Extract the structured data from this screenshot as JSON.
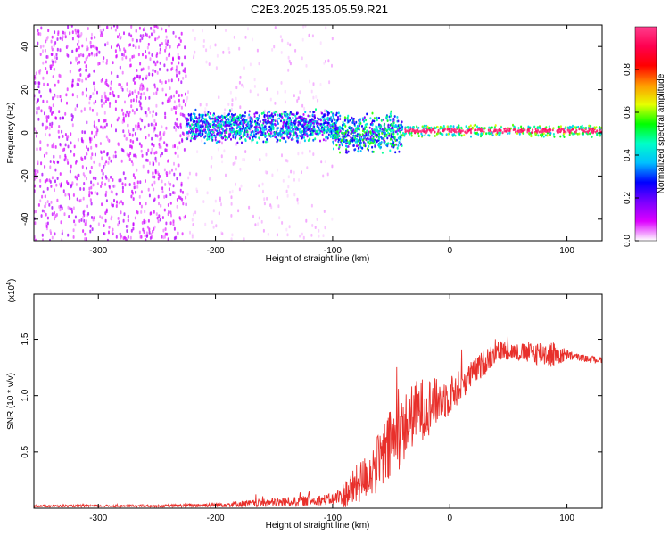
{
  "title": "C2E3.2025.135.05.59.R21",
  "chart_data": [
    {
      "type": "heatmap",
      "xlabel": "Height of straight line (km)",
      "ylabel": "Frequency (Hz)",
      "xlim": [
        -355,
        130
      ],
      "ylim": [
        -50,
        50
      ],
      "xticks": [
        -300,
        -200,
        -100,
        0,
        100
      ],
      "yticks": [
        -40,
        -20,
        0,
        20,
        40
      ],
      "grid": false,
      "colorbar": {
        "label": "Normalized spectral amplitude",
        "range": [
          0,
          1
        ],
        "ticks": [
          "0.0",
          "0.2",
          "0.4",
          "0.6",
          "0.8"
        ],
        "colors": [
          "#ffffff",
          "#dd00ff",
          "#7a00ff",
          "#0000ff",
          "#00bfff",
          "#00ffc8",
          "#00ff00",
          "#e6ff00",
          "#ff9900",
          "#ff0000",
          "#ff0050",
          "#ff3c8c"
        ]
      },
      "regions": [
        {
          "name": "broadband noise",
          "x": [
            -355,
            -225
          ],
          "freq": [
            -50,
            50
          ],
          "amplitude": 0.1
        },
        {
          "name": "weak scatter",
          "x": [
            -225,
            -100
          ],
          "freq": [
            -50,
            50
          ],
          "amplitude": 0.03
        },
        {
          "name": "spectral band",
          "x": [
            -225,
            -95
          ],
          "center_freq": 3,
          "half_width": 8,
          "amplitude": 0.35
        },
        {
          "name": "breakup band",
          "x": [
            -100,
            -40
          ],
          "center_freq": 0,
          "half_width": 10,
          "amplitude": 0.4
        },
        {
          "name": "carrier line",
          "x": [
            -40,
            130
          ],
          "center_freq": 1,
          "half_width": 3,
          "amplitude": 0.95
        }
      ]
    },
    {
      "type": "line",
      "xlabel": "Height of straight line (km)",
      "ylabel": "SNR (10 * v/v)",
      "y_multiplier": "(x10",
      "y_multiplier_exponent": "4",
      "y_multiplier_close": ")",
      "xlim": [
        -355,
        130
      ],
      "ylim": [
        0,
        1.9
      ],
      "xticks": [
        -300,
        -200,
        -100,
        0,
        100
      ],
      "yticks": [
        0.5,
        1.0,
        1.5
      ],
      "ytick_labels": [
        "0.5",
        "1.0",
        "1.5"
      ],
      "grid": false,
      "series": [
        {
          "color": "#e8302b",
          "x": [
            -355,
            -250,
            -200,
            -150,
            -100,
            -90,
            -80,
            -70,
            -60,
            -50,
            -40,
            -30,
            -20,
            -10,
            0,
            10,
            20,
            30,
            40,
            50,
            60,
            70,
            80,
            90,
            100,
            110,
            120,
            130
          ],
          "y": [
            0.02,
            0.02,
            0.03,
            0.05,
            0.08,
            0.12,
            0.2,
            0.3,
            0.4,
            0.55,
            0.7,
            0.85,
            0.9,
            0.95,
            1.0,
            1.1,
            1.2,
            1.3,
            1.4,
            1.4,
            1.38,
            1.38,
            1.38,
            1.36,
            1.36,
            1.34,
            1.32,
            1.32
          ],
          "noise": [
            0.01,
            0.01,
            0.02,
            0.04,
            0.05,
            0.12,
            0.18,
            0.2,
            0.28,
            0.35,
            0.3,
            0.28,
            0.28,
            0.2,
            0.18,
            0.14,
            0.12,
            0.12,
            0.1,
            0.08,
            0.08,
            0.1,
            0.12,
            0.12,
            0.05,
            0.03,
            0.03,
            0.03
          ]
        }
      ]
    }
  ]
}
